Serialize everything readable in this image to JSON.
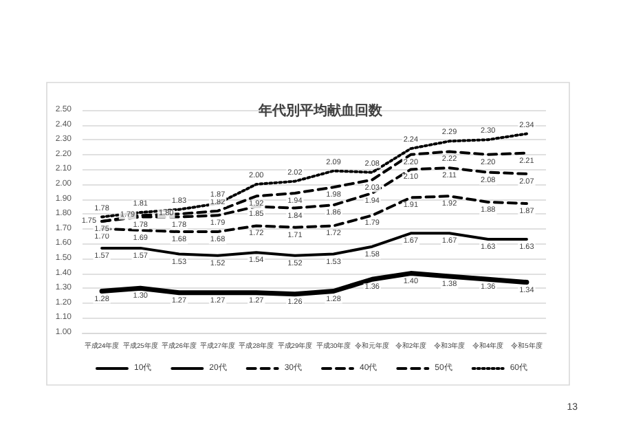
{
  "chart_data": {
    "type": "line",
    "title": "年代別平均献血回数",
    "categories": [
      "平成24年度",
      "平成25年度",
      "平成26年度",
      "平成27年度",
      "平成28年度",
      "平成29年度",
      "平成30年度",
      "令和元年度",
      "令和2年度",
      "令和3年度",
      "令和4年度",
      "令和5年度"
    ],
    "series": [
      {
        "name": "10代",
        "color": "#000000",
        "line_style": "solid",
        "values": [
          1.28,
          1.3,
          1.27,
          1.27,
          1.27,
          1.26,
          1.28,
          1.36,
          1.4,
          1.38,
          1.36,
          1.34
        ],
        "value_labels": [
          "1.28",
          "1.30",
          "1.27",
          "1.27",
          "1.27",
          "1.26",
          "1.28",
          "1.36",
          "1.40",
          "1.38",
          "1.36",
          "1.34"
        ]
      },
      {
        "name": "20代",
        "color": "#000000",
        "line_style": "solid",
        "values": [
          1.57,
          1.57,
          1.53,
          1.52,
          1.54,
          1.52,
          1.53,
          1.58,
          1.67,
          1.67,
          1.63,
          1.63
        ],
        "value_labels": [
          "1.57",
          "1.57",
          "1.53",
          "1.52",
          "1.54",
          "1.52",
          "1.53",
          "1.58",
          "1.67",
          "1.67",
          "1.63",
          "1.63"
        ]
      },
      {
        "name": "30代",
        "color": "#000000",
        "line_style": "dashed",
        "values": [
          1.7,
          1.69,
          1.68,
          1.68,
          1.72,
          1.71,
          1.72,
          1.79,
          1.91,
          1.92,
          1.88,
          1.87
        ],
        "value_labels": [
          "1.70",
          "1.69",
          "1.68",
          "1.68",
          "1.72",
          "1.71",
          "1.72",
          "1.79",
          "1.91",
          "1.92",
          "1.88",
          "1.87"
        ]
      },
      {
        "name": "40代",
        "color": "#000000",
        "line_style": "dashed",
        "values": [
          1.75,
          1.78,
          1.78,
          1.79,
          1.85,
          1.84,
          1.86,
          1.94,
          2.1,
          2.11,
          2.08,
          2.07
        ],
        "value_labels": [
          "1.75",
          "1.78",
          "1.78",
          "1.79",
          "1.85",
          "1.84",
          "1.86",
          "1.94",
          "2.10",
          "2.11",
          "2.08",
          "2.07"
        ]
      },
      {
        "name": "50代",
        "color": "#000000",
        "line_style": "dashed",
        "values": [
          1.75,
          1.79,
          1.8,
          1.82,
          1.92,
          1.94,
          1.98,
          2.03,
          2.2,
          2.22,
          2.2,
          2.21
        ],
        "value_labels": [
          "1.75",
          "1.79",
          "1.80",
          "1.82",
          "1.92",
          "1.94",
          "1.98",
          "2.03",
          "2.20",
          "2.22",
          "2.20",
          "2.21"
        ]
      },
      {
        "name": "60代",
        "color": "#000000",
        "line_style": "dotted",
        "values": [
          1.78,
          1.81,
          1.83,
          1.87,
          2.0,
          2.02,
          2.09,
          2.08,
          2.24,
          2.29,
          2.3,
          2.34
        ],
        "value_labels": [
          "1.78",
          "1.81",
          "1.83",
          "1.87",
          "2.00",
          "2.02",
          "2.09",
          "2.08",
          "2.24",
          "2.29",
          "2.30",
          "2.34"
        ]
      }
    ],
    "ylim": [
      1.0,
      2.5
    ],
    "yticks": [
      {
        "value": 1.0,
        "label": "1.00"
      },
      {
        "value": 1.1,
        "label": "1.10"
      },
      {
        "value": 1.2,
        "label": "1.20"
      },
      {
        "value": 1.3,
        "label": "1.30"
      },
      {
        "value": 1.4,
        "label": "1.40"
      },
      {
        "value": 1.5,
        "label": "1.50"
      },
      {
        "value": 1.6,
        "label": "1.60"
      },
      {
        "value": 1.7,
        "label": "1.70"
      },
      {
        "value": 1.8,
        "label": "1.80"
      },
      {
        "value": 1.9,
        "label": "1.90"
      },
      {
        "value": 2.0,
        "label": "2.00"
      },
      {
        "value": 2.1,
        "label": "2.10"
      },
      {
        "value": 2.2,
        "label": "2.20"
      },
      {
        "value": 2.3,
        "label": "2.30"
      },
      {
        "value": 2.4,
        "label": "2.40"
      },
      {
        "value": 2.5,
        "label": "2.50"
      }
    ],
    "grid": "y",
    "legend": "bottom",
    "marker": "none",
    "annotations": [
      "13"
    ]
  }
}
